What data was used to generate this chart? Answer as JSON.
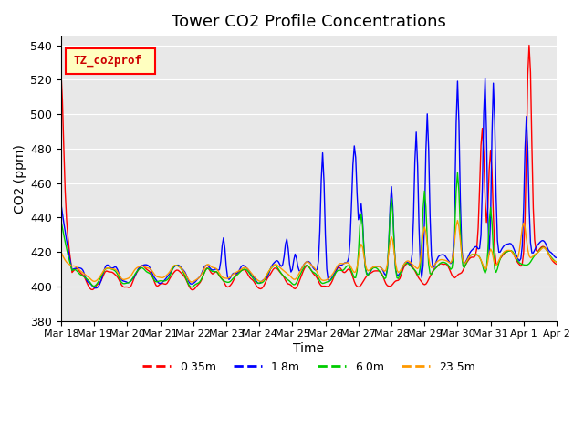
{
  "title": "Tower CO2 Profile Concentrations",
  "xlabel": "Time",
  "ylabel": "CO2 (ppm)",
  "ylim": [
    380,
    545
  ],
  "xlim": [
    0,
    360
  ],
  "yticks": [
    380,
    400,
    420,
    440,
    460,
    480,
    500,
    520,
    540
  ],
  "xtick_positions": [
    0,
    24,
    48,
    72,
    96,
    120,
    144,
    168,
    192,
    216,
    240,
    264,
    288,
    312,
    336,
    360
  ],
  "xtick_labels": [
    "Mar 18",
    "Mar 19",
    "Mar 20",
    "Mar 21",
    "Mar 22",
    "Mar 23",
    "Mar 24",
    "Mar 25",
    "Mar 26",
    "Mar 27",
    "Mar 28",
    "Mar 29",
    "Mar 30",
    "Mar 31",
    "Apr 1",
    "Apr 2"
  ],
  "series_colors": [
    "#ff0000",
    "#0000ff",
    "#00cc00",
    "#ff9900"
  ],
  "series_labels": [
    "0.35m",
    "1.8m",
    "6.0m",
    "23.5m"
  ],
  "line_width": 1.0,
  "legend_label": "TZ_co2prof",
  "bg_color": "#e8e8e8",
  "fig_color": "#ffffff"
}
